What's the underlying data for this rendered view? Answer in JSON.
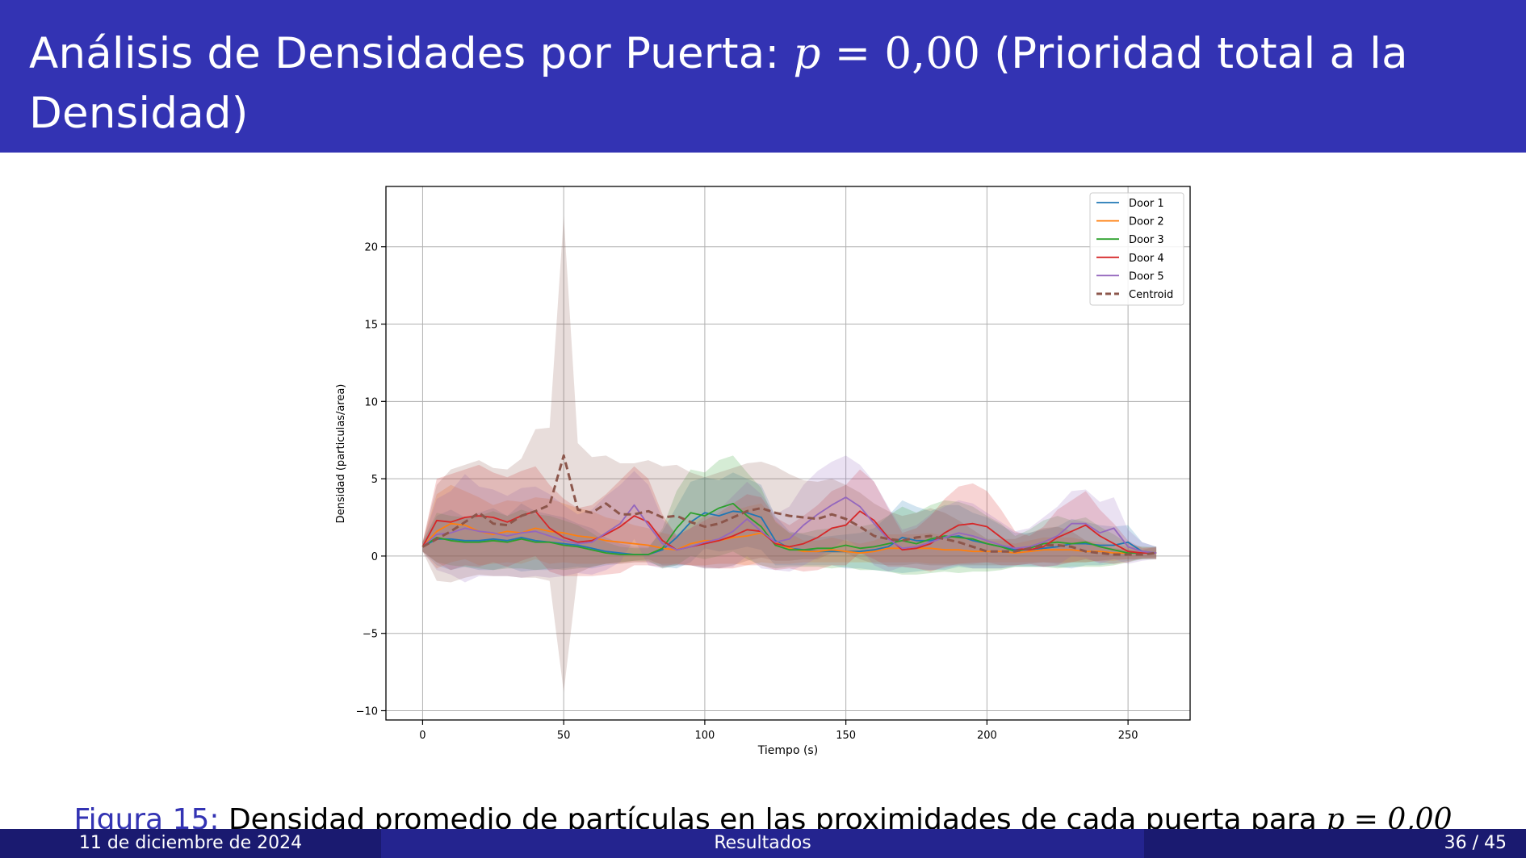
{
  "slide": {
    "title_text": "Análisis de Densidades por Puerta: ",
    "title_math_var": "p",
    "title_math_eq": " = 0,00",
    "title_suffix": " (Prioridad total a la",
    "title_line2": "Densidad)"
  },
  "caption": {
    "label": "Figura 15:",
    "text": " Densidad promedio de partículas en las proximidades de cada puerta para ",
    "math": "p = 0,00"
  },
  "footer": {
    "date": "11 de diciembre de 2024",
    "section": "Resultados",
    "page": "36 / 45"
  },
  "colors": {
    "header_bg": "#3333b3",
    "footer_dark": "#1a1a70",
    "footer_mid": "#24248f",
    "door1": "#1f77b4",
    "door2": "#ff7f0e",
    "door3": "#2ca02c",
    "door4": "#d62728",
    "door5": "#9467bd",
    "centroid": "#8c564b"
  },
  "chart_data": {
    "type": "line",
    "title": "",
    "xlabel": "Tiempo (s)",
    "ylabel": "Densidad (particulas/area)",
    "xlim": [
      -13,
      272
    ],
    "ylim": [
      -10.6,
      23.9
    ],
    "xticks": [
      0,
      50,
      100,
      150,
      200,
      250
    ],
    "yticks": [
      -10,
      -5,
      0,
      5,
      10,
      15,
      20
    ],
    "grid": true,
    "legend_position": "top-right",
    "x": [
      0,
      5,
      10,
      15,
      20,
      25,
      30,
      35,
      40,
      45,
      50,
      55,
      60,
      65,
      70,
      75,
      80,
      85,
      90,
      95,
      100,
      105,
      110,
      115,
      120,
      125,
      130,
      135,
      140,
      145,
      150,
      155,
      160,
      165,
      170,
      175,
      180,
      185,
      190,
      195,
      200,
      205,
      210,
      215,
      220,
      225,
      230,
      235,
      240,
      245,
      250,
      255,
      260
    ],
    "series": [
      {
        "name": "Door 1",
        "color": "#1f77b4",
        "dash": false,
        "values": [
          0.6,
          1.1,
          1.1,
          1.0,
          1.0,
          1.1,
          1.0,
          1.2,
          1.0,
          0.9,
          0.8,
          0.7,
          0.5,
          0.3,
          0.2,
          0.1,
          0.1,
          0.4,
          1.2,
          2.2,
          2.8,
          2.6,
          2.9,
          2.8,
          2.5,
          1.0,
          0.5,
          0.4,
          0.3,
          0.3,
          0.3,
          0.3,
          0.4,
          0.6,
          1.2,
          1.0,
          1.0,
          1.2,
          1.3,
          1.0,
          0.8,
          0.6,
          0.4,
          0.4,
          0.5,
          0.6,
          0.8,
          0.8,
          0.7,
          0.7,
          0.9,
          0.3,
          0.2
        ],
        "upper": [
          0.9,
          2.6,
          3.0,
          2.5,
          2.8,
          3.1,
          2.6,
          3.4,
          2.9,
          2.7,
          2.5,
          2.1,
          1.8,
          1.2,
          0.8,
          0.6,
          0.6,
          1.6,
          3.2,
          4.8,
          5.1,
          4.9,
          5.4,
          5.0,
          4.6,
          2.6,
          1.6,
          1.4,
          1.2,
          1.3,
          1.4,
          1.5,
          1.8,
          2.6,
          3.6,
          3.2,
          2.9,
          3.3,
          3.3,
          2.8,
          2.5,
          2.0,
          1.5,
          1.5,
          1.7,
          1.9,
          2.4,
          2.2,
          2.0,
          1.9,
          2.0,
          0.9,
          0.6
        ],
        "lower": [
          0.3,
          -0.6,
          -0.9,
          -0.7,
          -0.9,
          -0.9,
          -0.7,
          -1.0,
          -0.9,
          -0.9,
          -0.8,
          -0.7,
          -0.8,
          -0.6,
          -0.5,
          -0.4,
          -0.4,
          -0.7,
          -0.8,
          -0.4,
          0.5,
          0.3,
          0.4,
          0.6,
          0.4,
          -0.6,
          -0.6,
          -0.6,
          -0.6,
          -0.6,
          -0.8,
          -0.8,
          -0.9,
          -1.0,
          -1.1,
          -1.0,
          -0.9,
          -0.9,
          -0.7,
          -0.8,
          -0.8,
          -0.8,
          -0.7,
          -0.7,
          -0.7,
          -0.7,
          -0.8,
          -0.6,
          -0.6,
          -0.5,
          -0.3,
          -0.2,
          -0.1
        ]
      },
      {
        "name": "Door 2",
        "color": "#ff7f0e",
        "dash": false,
        "values": [
          0.6,
          1.6,
          2.1,
          2.0,
          1.6,
          1.4,
          1.6,
          1.5,
          1.8,
          1.6,
          1.5,
          1.3,
          1.2,
          1.0,
          0.9,
          0.8,
          0.7,
          0.5,
          0.4,
          0.8,
          1.0,
          1.0,
          1.2,
          1.3,
          1.5,
          0.9,
          0.5,
          0.3,
          0.3,
          0.4,
          0.3,
          0.2,
          0.3,
          0.5,
          0.5,
          0.5,
          0.5,
          0.4,
          0.4,
          0.3,
          0.3,
          0.3,
          0.2,
          0.3,
          0.4,
          0.4,
          0.4,
          0.3,
          0.3,
          0.2,
          0.2,
          0.2,
          0.2
        ],
        "upper": [
          0.9,
          4.0,
          4.6,
          4.2,
          3.8,
          3.3,
          3.6,
          3.5,
          3.8,
          3.7,
          3.4,
          3.1,
          2.9,
          2.5,
          2.3,
          2.0,
          1.8,
          1.5,
          1.3,
          2.2,
          2.6,
          2.5,
          2.9,
          3.2,
          3.4,
          2.3,
          1.5,
          1.0,
          1.0,
          1.2,
          1.0,
          0.8,
          1.0,
          1.4,
          1.4,
          1.4,
          1.5,
          1.3,
          1.3,
          1.0,
          1.0,
          1.0,
          0.8,
          1.0,
          1.2,
          1.2,
          1.2,
          1.0,
          0.9,
          0.7,
          0.6,
          0.6,
          0.5
        ],
        "lower": [
          0.3,
          -0.8,
          -0.4,
          -0.2,
          -0.6,
          -0.5,
          -0.4,
          -0.5,
          -0.2,
          -0.5,
          -0.4,
          -0.5,
          -0.5,
          -0.5,
          -0.5,
          -0.4,
          -0.4,
          -0.5,
          -0.5,
          -0.6,
          -0.6,
          -0.5,
          -0.5,
          -0.6,
          -0.4,
          -0.5,
          -0.5,
          -0.4,
          -0.4,
          -0.4,
          -0.4,
          -0.4,
          -0.4,
          -0.4,
          -0.4,
          -0.4,
          -0.5,
          -0.5,
          -0.5,
          -0.4,
          -0.4,
          -0.4,
          -0.4,
          -0.4,
          -0.4,
          -0.4,
          -0.4,
          -0.4,
          -0.3,
          -0.3,
          -0.2,
          -0.2,
          -0.1
        ]
      },
      {
        "name": "Door 3",
        "color": "#2ca02c",
        "dash": false,
        "values": [
          0.6,
          1.2,
          1.0,
          0.9,
          0.9,
          1.0,
          0.9,
          1.1,
          0.9,
          0.9,
          0.7,
          0.6,
          0.4,
          0.2,
          0.1,
          0.1,
          0.1,
          0.5,
          1.8,
          2.8,
          2.6,
          3.1,
          3.4,
          2.6,
          1.9,
          0.7,
          0.4,
          0.4,
          0.5,
          0.5,
          0.7,
          0.5,
          0.6,
          0.8,
          1.0,
          0.8,
          1.1,
          1.3,
          1.2,
          1.1,
          0.8,
          0.6,
          0.3,
          0.5,
          0.8,
          0.9,
          0.8,
          0.9,
          0.6,
          0.4,
          0.2,
          0.2,
          0.2
        ],
        "upper": [
          0.9,
          2.8,
          2.6,
          2.5,
          2.6,
          2.9,
          2.6,
          3.0,
          2.7,
          2.6,
          2.3,
          2.0,
          1.5,
          0.9,
          0.6,
          0.5,
          0.5,
          1.8,
          4.2,
          5.6,
          5.4,
          6.2,
          6.5,
          5.4,
          4.4,
          2.2,
          1.5,
          1.5,
          1.7,
          1.8,
          2.1,
          1.9,
          2.1,
          2.6,
          3.2,
          2.8,
          3.3,
          3.6,
          3.5,
          3.2,
          2.6,
          2.1,
          1.3,
          1.7,
          2.3,
          2.6,
          2.3,
          2.5,
          1.9,
          1.4,
          0.8,
          0.6,
          0.6
        ],
        "lower": [
          0.3,
          -0.4,
          -0.6,
          -0.7,
          -0.8,
          -0.9,
          -0.8,
          -0.8,
          -0.9,
          -0.8,
          -0.9,
          -0.8,
          -0.7,
          -0.5,
          -0.4,
          -0.3,
          -0.3,
          -0.8,
          -0.6,
          0.0,
          -0.2,
          0.0,
          0.3,
          -0.2,
          -0.6,
          -0.8,
          -0.7,
          -0.7,
          -0.7,
          -0.8,
          -0.7,
          -0.9,
          -0.9,
          -1.0,
          -1.2,
          -1.2,
          -1.1,
          -1.0,
          -1.1,
          -1.0,
          -1.0,
          -0.9,
          -0.7,
          -0.7,
          -0.7,
          -0.8,
          -0.7,
          -0.7,
          -0.7,
          -0.6,
          -0.4,
          -0.2,
          -0.2
        ]
      },
      {
        "name": "Door 4",
        "color": "#d62728",
        "dash": false,
        "values": [
          0.6,
          2.3,
          2.2,
          2.5,
          2.6,
          2.5,
          2.2,
          2.6,
          2.9,
          1.8,
          1.2,
          0.9,
          1.0,
          1.4,
          1.9,
          2.6,
          2.2,
          1.0,
          0.4,
          0.6,
          0.8,
          1.0,
          1.3,
          1.7,
          1.6,
          0.8,
          0.6,
          0.8,
          1.2,
          1.8,
          2.0,
          2.9,
          2.3,
          1.2,
          0.4,
          0.5,
          0.8,
          1.5,
          2.0,
          2.1,
          1.9,
          1.2,
          0.5,
          0.4,
          0.6,
          1.2,
          1.6,
          2.0,
          1.3,
          0.8,
          0.3,
          0.2,
          0.2
        ],
        "upper": [
          0.9,
          5.0,
          5.3,
          5.6,
          5.9,
          5.4,
          5.1,
          5.5,
          5.8,
          4.6,
          3.7,
          3.1,
          3.3,
          4.0,
          4.9,
          5.8,
          5.0,
          2.7,
          1.3,
          1.8,
          2.3,
          2.8,
          3.4,
          4.0,
          3.8,
          2.5,
          2.0,
          2.6,
          3.3,
          4.2,
          4.6,
          5.6,
          4.8,
          3.1,
          1.5,
          1.8,
          2.6,
          3.7,
          4.5,
          4.7,
          4.2,
          3.0,
          1.6,
          1.3,
          1.9,
          3.0,
          3.6,
          4.2,
          3.0,
          2.1,
          1.0,
          0.5,
          0.6
        ],
        "lower": [
          0.3,
          -0.4,
          -0.9,
          -0.6,
          -0.7,
          -0.4,
          -0.7,
          -0.3,
          0.0,
          -1.0,
          -1.3,
          -1.3,
          -1.3,
          -1.2,
          -1.1,
          -0.6,
          -0.6,
          -0.7,
          -0.5,
          -0.6,
          -0.7,
          -0.8,
          -0.8,
          -0.6,
          -0.6,
          -0.9,
          -0.8,
          -1.0,
          -0.9,
          -0.6,
          -0.6,
          0.2,
          -0.2,
          -0.7,
          -0.7,
          -0.8,
          -1.0,
          -0.7,
          -0.5,
          -0.5,
          -0.4,
          -0.6,
          -0.6,
          -0.5,
          -0.7,
          -0.6,
          -0.4,
          -0.2,
          -0.4,
          -0.5,
          -0.4,
          -0.1,
          -0.2
        ]
      },
      {
        "name": "Door 5",
        "color": "#9467bd",
        "dash": false,
        "values": [
          0.6,
          1.4,
          1.5,
          1.8,
          1.6,
          1.5,
          1.3,
          1.5,
          1.6,
          1.3,
          1.0,
          0.8,
          0.9,
          1.5,
          2.1,
          3.3,
          2.0,
          0.8,
          0.4,
          0.6,
          0.9,
          1.1,
          1.6,
          2.4,
          1.6,
          0.9,
          1.1,
          2.0,
          2.7,
          3.3,
          3.8,
          3.2,
          2.1,
          1.1,
          0.5,
          0.6,
          0.9,
          1.2,
          1.5,
          1.3,
          1.0,
          0.7,
          0.5,
          0.6,
          0.9,
          1.3,
          2.1,
          2.1,
          1.5,
          1.8,
          0.6,
          0.3,
          0.2
        ],
        "upper": [
          0.9,
          3.7,
          4.2,
          5.3,
          4.5,
          4.3,
          3.9,
          4.4,
          4.5,
          4.0,
          3.3,
          2.7,
          3.0,
          3.9,
          4.6,
          5.5,
          4.6,
          2.4,
          1.4,
          1.8,
          2.6,
          3.0,
          3.9,
          4.8,
          4.0,
          2.7,
          3.2,
          4.6,
          5.5,
          6.1,
          6.5,
          5.9,
          4.8,
          3.2,
          1.7,
          2.0,
          2.7,
          3.2,
          3.6,
          3.4,
          2.8,
          2.2,
          1.6,
          1.8,
          2.5,
          3.2,
          4.2,
          4.3,
          3.5,
          3.8,
          1.7,
          0.9,
          0.6
        ],
        "lower": [
          0.3,
          -0.9,
          -1.2,
          -1.7,
          -1.3,
          -1.3,
          -1.3,
          -1.4,
          -1.3,
          -1.4,
          -1.3,
          -1.1,
          -1.2,
          -0.9,
          -0.4,
          1.1,
          -0.6,
          -0.8,
          -0.6,
          -0.6,
          -0.8,
          -0.8,
          -0.7,
          0.0,
          -0.8,
          -0.9,
          -1.0,
          -0.6,
          -0.1,
          0.5,
          1.1,
          0.5,
          -0.6,
          -1.0,
          -0.7,
          -0.8,
          -0.9,
          -0.8,
          -0.6,
          -0.8,
          -0.8,
          -0.8,
          -0.6,
          -0.6,
          -0.7,
          -0.6,
          0.0,
          -0.1,
          -0.5,
          -0.2,
          -0.5,
          -0.3,
          -0.2
        ]
      },
      {
        "name": "Centroid",
        "color": "#8c564b",
        "dash": true,
        "values": [
          0.6,
          1.1,
          1.6,
          2.2,
          2.8,
          2.1,
          2.0,
          2.6,
          2.9,
          3.3,
          6.5,
          3.0,
          2.8,
          3.4,
          2.7,
          2.7,
          2.9,
          2.5,
          2.6,
          2.2,
          1.9,
          2.1,
          2.5,
          2.9,
          3.1,
          2.8,
          2.6,
          2.5,
          2.4,
          2.7,
          2.4,
          1.9,
          1.3,
          1.1,
          1.0,
          1.2,
          1.3,
          1.1,
          0.9,
          0.6,
          0.3,
          0.3,
          0.3,
          0.5,
          0.7,
          0.7,
          0.6,
          0.3,
          0.2,
          0.1,
          0.1,
          0.1,
          0.2
        ],
        "upper": [
          0.9,
          4.6,
          5.6,
          5.9,
          6.2,
          5.7,
          5.6,
          6.3,
          8.2,
          8.3,
          22.0,
          7.3,
          6.4,
          6.5,
          6.0,
          6.0,
          6.2,
          5.8,
          5.9,
          5.4,
          5.1,
          5.4,
          5.7,
          6.0,
          6.1,
          5.8,
          5.3,
          4.9,
          4.8,
          5.0,
          4.6,
          4.1,
          3.4,
          2.9,
          2.6,
          2.8,
          3.1,
          2.8,
          2.3,
          1.7,
          1.1,
          1.1,
          1.1,
          1.5,
          1.8,
          1.9,
          1.6,
          1.0,
          0.7,
          0.5,
          0.4,
          0.4,
          0.6
        ],
        "lower": [
          0.3,
          -1.6,
          -1.7,
          -1.4,
          -1.2,
          -1.3,
          -1.3,
          -1.4,
          -1.4,
          -1.6,
          -8.8,
          -1.1,
          -0.7,
          -0.5,
          -0.4,
          -0.3,
          -0.2,
          -0.6,
          -0.6,
          -0.6,
          -0.8,
          -0.8,
          -0.6,
          -0.3,
          -0.1,
          -0.3,
          -0.3,
          -0.2,
          -0.2,
          0.2,
          0.2,
          -0.2,
          -0.5,
          -0.6,
          -0.6,
          -0.5,
          -0.6,
          -0.6,
          -0.6,
          -0.6,
          -0.6,
          -0.6,
          -0.6,
          -0.5,
          -0.4,
          -0.5,
          -0.4,
          -0.4,
          -0.3,
          -0.2,
          -0.2,
          -0.2,
          -0.2
        ]
      }
    ]
  }
}
